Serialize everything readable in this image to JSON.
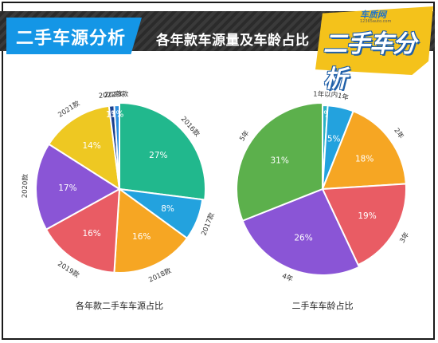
{
  "header": {
    "title": "二手车源分析",
    "subtitle": "各年款车源量及车龄占比"
  },
  "logo": {
    "site_name": "车质网",
    "url": "12365auto.com",
    "text": "二手车分析"
  },
  "colors": {
    "header_blue": "#1496e6",
    "logo_yellow": "#f4c21b",
    "teal": "#21b88d",
    "blue": "#23a2de",
    "orange": "#f6a623",
    "red": "#e95c64",
    "purple": "#8a55d6",
    "yellow": "#eec822",
    "green": "#5cb04c",
    "cyan": "#2bb3c4",
    "darkblue": "#1a3f8f"
  },
  "chart_data": [
    {
      "type": "pie",
      "title": "各年款二手车车源占比",
      "slices": [
        {
          "label": "2016款",
          "value": 27,
          "pct_label": "27%",
          "color": "#21b88d"
        },
        {
          "label": "2017款",
          "value": 8,
          "pct_label": "8%",
          "color": "#23a2de"
        },
        {
          "label": "2018款",
          "value": 16,
          "pct_label": "16%",
          "color": "#f6a623"
        },
        {
          "label": "2019款",
          "value": 16,
          "pct_label": "16%",
          "color": "#e95c64"
        },
        {
          "label": "2020款",
          "value": 17,
          "pct_label": "17%",
          "color": "#8a55d6"
        },
        {
          "label": "2021款",
          "value": 14,
          "pct_label": "14%",
          "color": "#eec822"
        },
        {
          "label": "2022款",
          "value": 1,
          "pct_label": "1%",
          "color": "#1a3f8f"
        },
        {
          "label": "2023款",
          "value": 1,
          "pct_label": "1%",
          "color": "#2b8fe0"
        }
      ]
    },
    {
      "type": "pie",
      "title": "二手车车龄占比",
      "slices": [
        {
          "label": "1年以内",
          "value": 1,
          "pct_label": "1%",
          "color": "#2bb3c4"
        },
        {
          "label": "1年",
          "value": 5,
          "pct_label": "5%",
          "color": "#23a2de"
        },
        {
          "label": "2年",
          "value": 18,
          "pct_label": "18%",
          "color": "#f6a623"
        },
        {
          "label": "3年",
          "value": 19,
          "pct_label": "19%",
          "color": "#e95c64"
        },
        {
          "label": "4年",
          "value": 26,
          "pct_label": "26%",
          "color": "#8a55d6"
        },
        {
          "label": "5年",
          "value": 31,
          "pct_label": "31%",
          "color": "#5cb04c"
        }
      ]
    }
  ]
}
